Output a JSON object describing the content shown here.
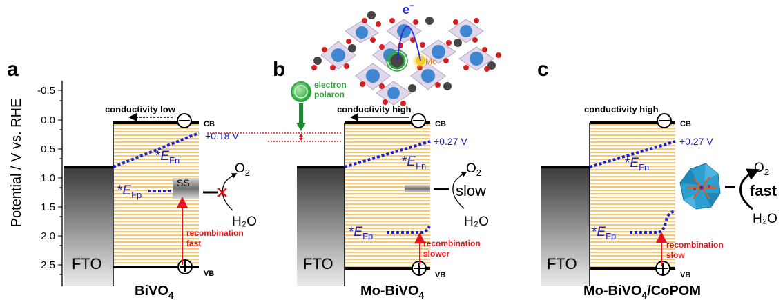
{
  "y_axis": {
    "label": "Potential / V vs. RHE",
    "ticks": [
      "-0.5",
      "0.0",
      "0.5",
      "1.0",
      "1.5",
      "2.0",
      "2.5"
    ]
  },
  "panels": [
    {
      "letter": "a",
      "title_main": "BiVO",
      "title_sub": "4",
      "fto": "FTO",
      "cb": "CB",
      "vb": "VB",
      "conductivity": "conductivity low",
      "efn_star": "*",
      "efn_main": "E",
      "efn_sub": "Fn",
      "efp_star": "*",
      "efp_main": "E",
      "efp_sub": "Fp",
      "potential": "+0.18 V",
      "surface_state": "SS",
      "recombination_1": "recombination",
      "recombination_2": "fast",
      "o2_main": "O",
      "o2_sub": "2",
      "h2o": "H₂O"
    },
    {
      "letter": "b",
      "title_main": "Mo-BiVO",
      "title_sub": "4",
      "fto": "FTO",
      "cb": "CB",
      "vb": "VB",
      "conductivity": "conductivity high",
      "efn_star": "*",
      "efn_main": "E",
      "efn_sub": "Fn",
      "efp_star": "*",
      "efp_main": "E",
      "efp_sub": "Fp",
      "potential": "+0.27 V",
      "recombination_1": "recombination",
      "recombination_2": "slower",
      "rate": "slow",
      "o2_main": "O",
      "o2_sub": "2",
      "h2o": "H₂O",
      "polaron_1": "electron",
      "polaron_2": "polaron",
      "electron_main": "e",
      "electron_sup": "−",
      "dopant": "Mo"
    },
    {
      "letter": "c",
      "title_main": "Mo-BiVO",
      "title_sub": "4",
      "title_tail": "/CoPOM",
      "fto": "FTO",
      "cb": "CB",
      "vb": "VB",
      "conductivity": "conductivity high",
      "efn_star": "*",
      "efn_main": "E",
      "efn_sub": "Fn",
      "efp_star": "*",
      "efp_main": "E",
      "efp_sub": "Fp",
      "potential": "+0.27 V",
      "recombination_1": "recombination",
      "recombination_2": "slow",
      "rate": "fast",
      "o2_main": "O",
      "o2_sub": "2",
      "h2o": "H₂O"
    }
  ],
  "colors": {
    "stripe": "#f3c978",
    "quasi_fermi": "#1a22c8",
    "recombination": "#e5161b",
    "polaron": "#2aa63b",
    "bi_atom": "#3e86cf",
    "o_atom": "#d61f1f",
    "v_atom": "#454545",
    "mo_glow": "#f2cc2a",
    "mo_label": "#ec7a1c"
  }
}
